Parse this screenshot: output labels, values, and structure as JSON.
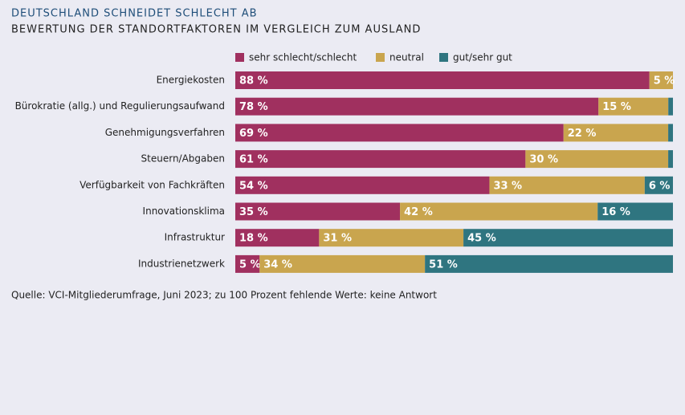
{
  "chart_data": {
    "type": "stacked-barh",
    "title": "DEUTSCHLAND SCHNEIDET SCHLECHT AB",
    "subtitle": "BEWERTUNG DER STANDORTFAKTOREN IM VERGLEICH ZUM AUSLAND",
    "source": "Quelle: VCI-Mitgliederumfrage, Juni 2023; zu 100 Prozent fehlende Werte: keine Antwort",
    "categories": [
      "Energiekosten",
      "Bürokratie (allg.) und Regulierungsaufwand",
      "Genehmigungsverfahren",
      "Steuern/Abgaben",
      "Verfügbarkeit von Fachkräften",
      "Innovationsklima",
      "Infrastruktur",
      "Industrienetzwerk"
    ],
    "series": [
      {
        "name": "sehr schlecht/schlecht",
        "color": "#a0305f",
        "values": [
          88,
          78,
          69,
          61,
          54,
          35,
          18,
          5
        ],
        "value_labels": [
          "88 %",
          "78 %",
          "69 %",
          "61 %",
          "54 %",
          "35 %",
          "18 %",
          "5 %"
        ]
      },
      {
        "name": "neutral",
        "color": "#c9a54e",
        "values": [
          5,
          15,
          22,
          30,
          33,
          42,
          31,
          34
        ],
        "value_labels": [
          "5 %",
          "15 %",
          "22 %",
          "30 %",
          "33 %",
          "42 %",
          "31 %",
          "34 %"
        ]
      },
      {
        "name": "gut/sehr gut",
        "color": "#2f7580",
        "values": [
          0,
          1,
          1,
          1,
          6,
          16,
          45,
          51
        ],
        "value_labels": [
          null,
          null,
          null,
          null,
          "6 %",
          "16 %",
          "45 %",
          "51 %"
        ]
      }
    ]
  }
}
